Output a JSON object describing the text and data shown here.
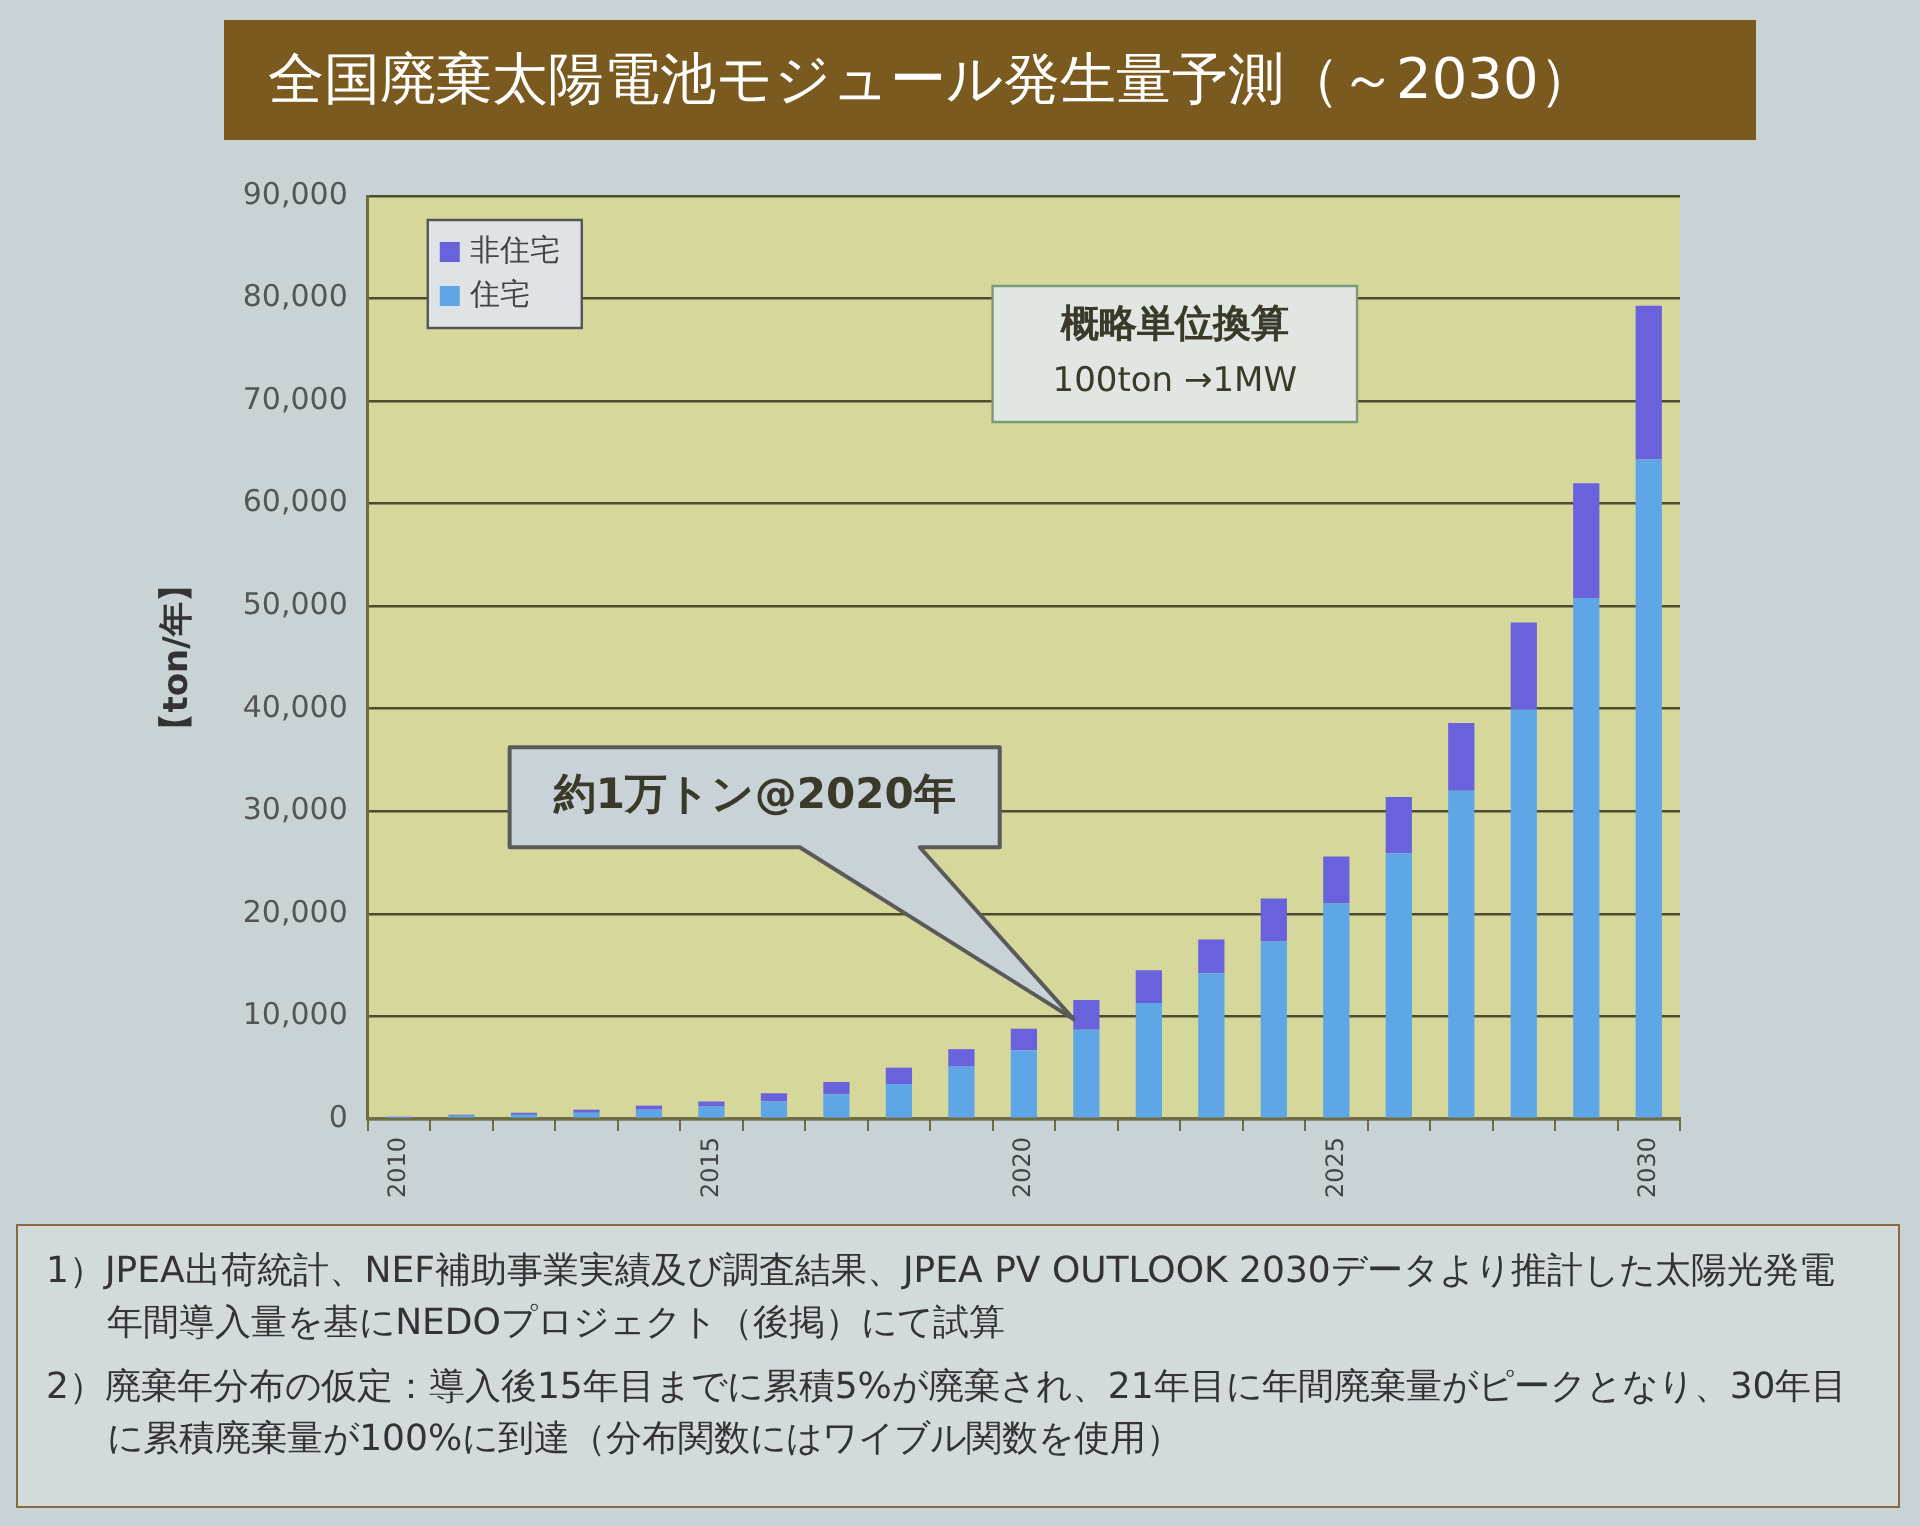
{
  "chart_data": {
    "type": "bar",
    "title": "全国廃棄太陽電池モジュール発生量予測（～2030）",
    "ylabel": "【ton/年】",
    "categories": [
      "2010",
      null,
      null,
      null,
      null,
      "2015",
      null,
      null,
      null,
      null,
      "2020",
      null,
      null,
      null,
      null,
      "2025",
      null,
      null,
      null,
      null,
      "2030"
    ],
    "series": [
      {
        "name": "住宅",
        "color": "#5ea6e6",
        "values": [
          100,
          300,
          400,
          600,
          900,
          1200,
          1700,
          2400,
          3400,
          5100,
          6700,
          8700,
          11300,
          14200,
          17300,
          21000,
          25900,
          32000,
          39900,
          50800,
          64300
        ]
      },
      {
        "name": "非住宅",
        "color": "#6a62dc",
        "values": [
          100,
          100,
          200,
          300,
          400,
          500,
          800,
          1200,
          1600,
          1700,
          2100,
          2900,
          3200,
          3300,
          4200,
          4600,
          5500,
          6600,
          8500,
          11200,
          15000
        ]
      }
    ],
    "stacked": true,
    "ylim": [
      0,
      90000
    ],
    "yticks": [
      0,
      {
        "value": 10000,
        "label": "10,000"
      },
      {
        "value": 20000,
        "label": "20,000"
      },
      {
        "value": 30000,
        "label": "30,000"
      },
      {
        "value": 40000,
        "label": "40,000"
      },
      {
        "value": 50000,
        "label": "50,000"
      },
      {
        "value": 60000,
        "label": "60,000"
      },
      {
        "value": 70000,
        "label": "70,000"
      },
      {
        "value": 80000,
        "label": "80,000"
      },
      {
        "value": 90000,
        "label": "90,000"
      }
    ],
    "grid": "y",
    "legend": "top left",
    "annotations": [
      "約1万トン@2020年",
      "概略単位換算\n100ton →1MW",
      "1）JPEA出荷統計、NEF補助事業実績及び調査結果、JPEA PV OUTLOOK 2030データより推計した太陽光発電年間導入量を基にNEDOプロジェクト（後掲）にて試算",
      "2）廃棄年分布の仮定：導入後15年目までに累積5%が廃棄され、21年目に年間廃棄量がピークとなり、30年目に累積廃棄量が100%に到達（分布関数にはワイブル関数を使用）"
    ]
  }
}
